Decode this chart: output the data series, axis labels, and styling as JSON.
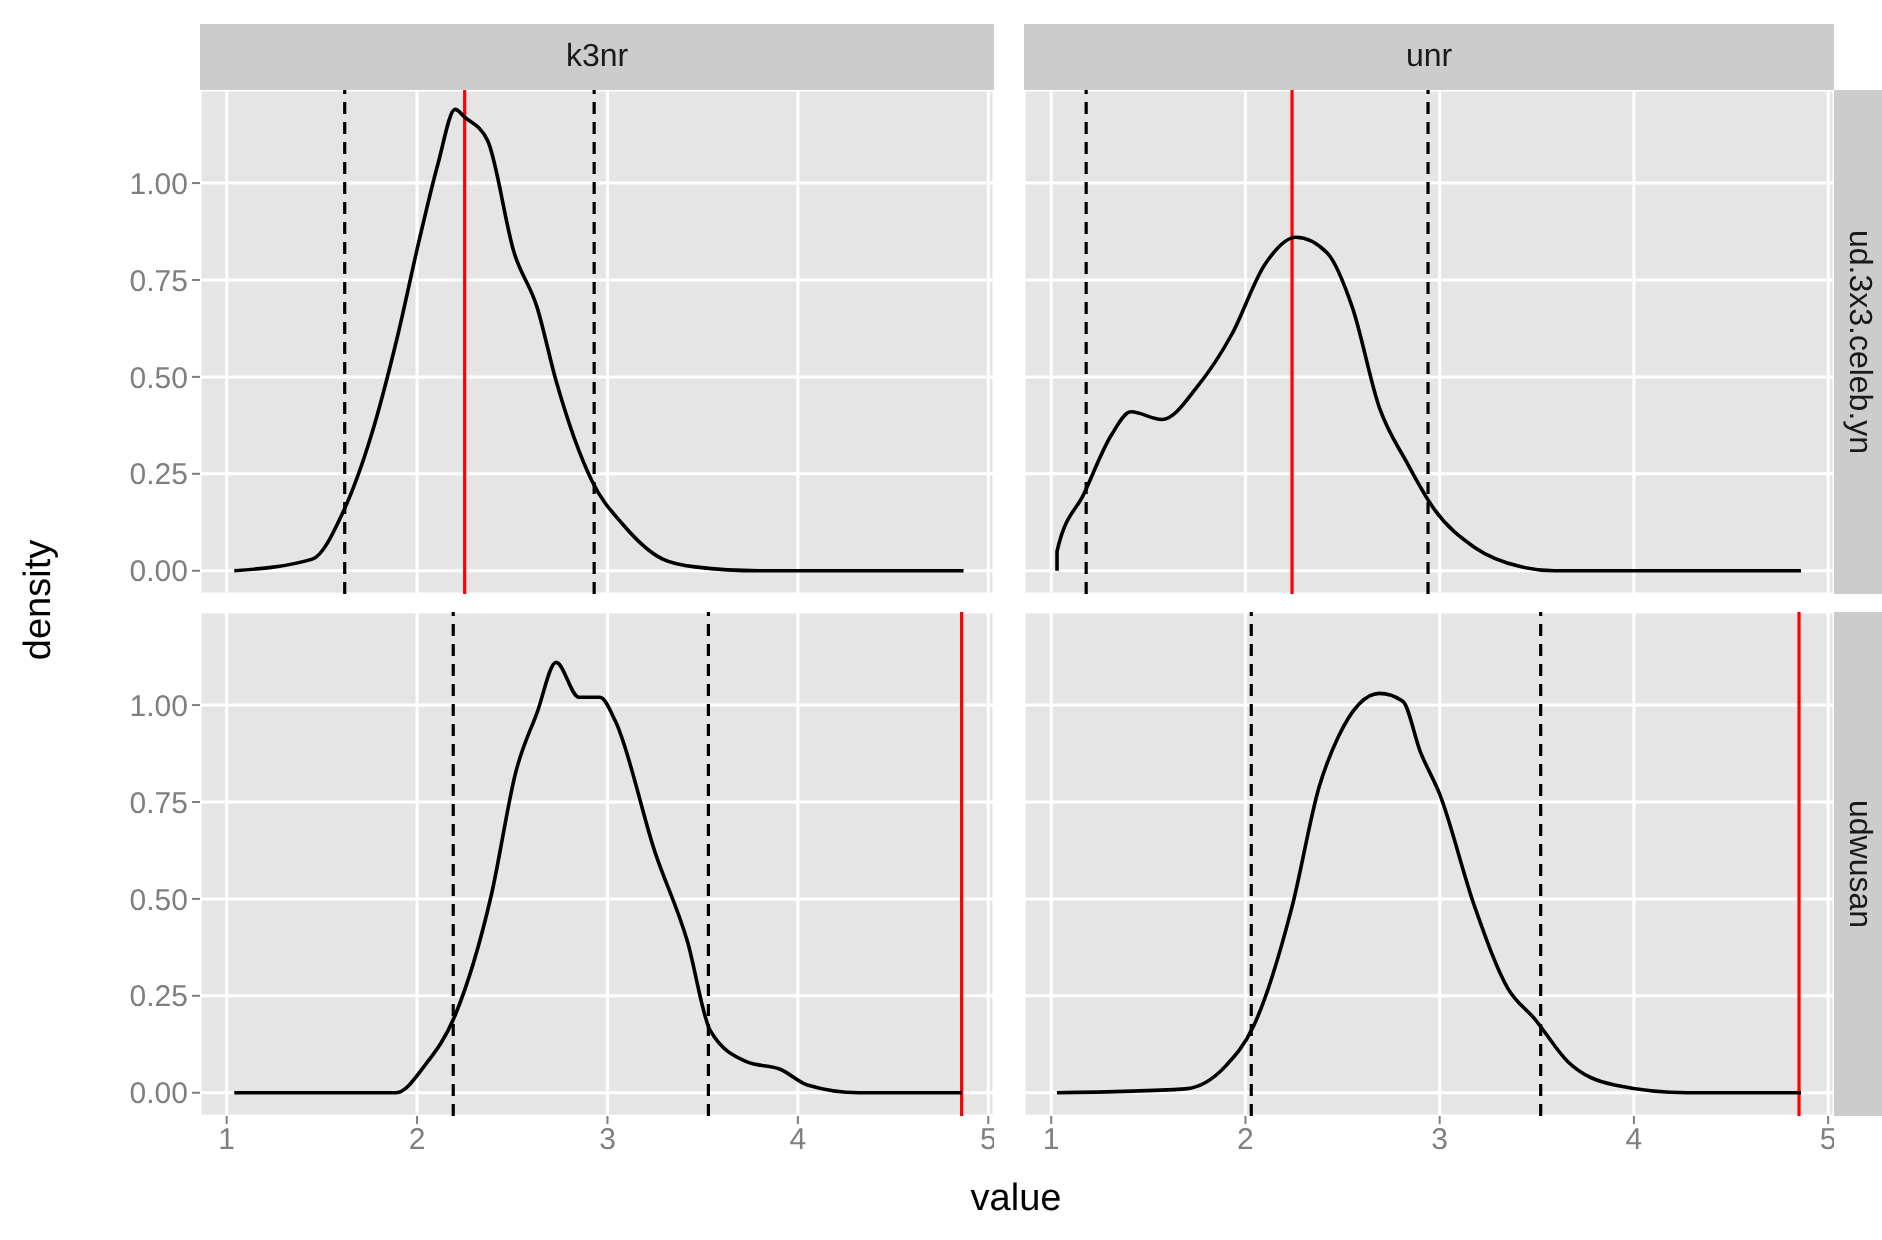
{
  "chart_data": [
    {
      "type": "line",
      "title": "k3nr",
      "ylabel": "density",
      "xlim": [
        0.86,
        5.03
      ],
      "ylim": [
        -0.06,
        1.24
      ],
      "xticks": [
        1,
        2,
        3,
        4,
        5
      ],
      "yticks": [
        {
          "value": 0,
          "label": "0.00"
        },
        {
          "value": 0.25,
          "label": "0.25"
        },
        {
          "value": 0.5,
          "label": "0.50"
        },
        {
          "value": 0.75,
          "label": "0.75"
        },
        {
          "value": 1,
          "label": "1.00"
        }
      ],
      "grid": true,
      "tick_labels": "y",
      "series": [
        {
          "color": "#000000",
          "x": [
            1.04,
            1.45,
            1.61,
            1.76,
            1.9,
            2.01,
            2.11,
            2.2,
            2.25,
            2.37,
            2.51,
            2.63,
            2.73,
            2.92,
            3.08,
            3.29,
            3.46,
            3.8,
            4.87
          ],
          "values": [
            0,
            0.03,
            0.15,
            0.35,
            0.61,
            0.85,
            1.05,
            1.19,
            1.17,
            1.11,
            0.82,
            0.68,
            0.49,
            0.23,
            0.12,
            0.03,
            0.01,
            0,
            0
          ]
        }
      ],
      "ref_lines": [
        {
          "axis": "x",
          "value": 1.62,
          "color": "#000000",
          "line_style": "dashed"
        },
        {
          "axis": "x",
          "value": 2.93,
          "color": "#000000",
          "line_style": "dashed"
        },
        {
          "axis": "x",
          "value": 2.25,
          "color": "#ff0000",
          "line_style": "solid"
        }
      ]
    },
    {
      "type": "line",
      "title": "unr",
      "y2label": "ud.3x3.celeb.yn",
      "xlim": [
        0.86,
        5.03
      ],
      "ylim": [
        -0.06,
        1.24
      ],
      "xticks": [
        1,
        2,
        3,
        4,
        5
      ],
      "yticks": [
        0,
        0.25,
        0.5,
        0.75,
        1
      ],
      "grid": true,
      "tick_labels": false,
      "series": [
        {
          "color": "#000000",
          "x": [
            1.03,
            1.03,
            1.17,
            1.31,
            1.41,
            1.57,
            1.76,
            1.93,
            2.1,
            2.26,
            2.42,
            2.55,
            2.69,
            2.83,
            2.97,
            3.18,
            3.42,
            3.59,
            4.86
          ],
          "values": [
            0,
            0.05,
            0.2,
            0.35,
            0.41,
            0.39,
            0.48,
            0.61,
            0.79,
            0.86,
            0.82,
            0.68,
            0.42,
            0.28,
            0.16,
            0.06,
            0.01,
            0,
            0
          ]
        }
      ],
      "ref_lines": [
        {
          "axis": "x",
          "value": 1.18,
          "color": "#000000",
          "line_style": "dashed"
        },
        {
          "axis": "x",
          "value": 2.94,
          "color": "#000000",
          "line_style": "dashed"
        },
        {
          "axis": "x",
          "value": 2.24,
          "color": "#ff0000",
          "line_style": "solid"
        }
      ]
    },
    {
      "type": "line",
      "xlabel": "value",
      "xlim": [
        0.86,
        5.03
      ],
      "ylim": [
        -0.06,
        1.24
      ],
      "xticks": [
        1,
        2,
        3,
        4,
        5
      ],
      "yticks": [
        {
          "value": 0,
          "label": "0.00"
        },
        {
          "value": 0.25,
          "label": "0.25"
        },
        {
          "value": 0.5,
          "label": "0.50"
        },
        {
          "value": 0.75,
          "label": "0.75"
        },
        {
          "value": 1,
          "label": "1.00"
        }
      ],
      "grid": true,
      "series": [
        {
          "color": "#000000",
          "x": [
            1.04,
            1.89,
            2.04,
            2.2,
            2.39,
            2.52,
            2.63,
            2.73,
            2.85,
            2.96,
            3.04,
            3.25,
            3.42,
            3.54,
            3.73,
            3.91,
            4.05,
            4.32,
            4.86
          ],
          "values": [
            0,
            0,
            0.07,
            0.2,
            0.51,
            0.83,
            0.98,
            1.11,
            1.02,
            1.02,
            0.96,
            0.62,
            0.39,
            0.16,
            0.08,
            0.06,
            0.02,
            0,
            0
          ]
        }
      ],
      "ref_lines": [
        {
          "axis": "x",
          "value": 2.19,
          "color": "#000000",
          "line_style": "dashed"
        },
        {
          "axis": "x",
          "value": 3.53,
          "color": "#000000",
          "line_style": "dashed"
        },
        {
          "axis": "x",
          "value": 4.86,
          "color": "#ff0000",
          "line_style": "solid"
        }
      ]
    },
    {
      "type": "line",
      "y2label": "udwusan",
      "xlim": [
        0.86,
        5.03
      ],
      "ylim": [
        -0.06,
        1.24
      ],
      "xticks": [
        1,
        2,
        3,
        4,
        5
      ],
      "yticks": [
        0,
        0.25,
        0.5,
        0.75,
        1
      ],
      "grid": true,
      "tick_labels": "x",
      "series": [
        {
          "color": "#000000",
          "x": [
            1.03,
            1.69,
            1.9,
            2.04,
            2.24,
            2.38,
            2.48,
            2.69,
            2.81,
            2.9,
            3.0,
            3.18,
            3.35,
            3.49,
            3.66,
            3.9,
            4.28,
            4.86
          ],
          "values": [
            0,
            0.01,
            0.07,
            0.17,
            0.48,
            0.79,
            0.92,
            1.03,
            1.01,
            0.88,
            0.77,
            0.48,
            0.27,
            0.19,
            0.08,
            0.02,
            0,
            0
          ]
        }
      ],
      "ref_lines": [
        {
          "axis": "x",
          "value": 2.03,
          "color": "#000000",
          "line_style": "dashed"
        },
        {
          "axis": "x",
          "value": 3.52,
          "color": "#000000",
          "line_style": "dashed"
        },
        {
          "axis": "x",
          "value": 4.85,
          "color": "#ff0000",
          "line_style": "solid"
        }
      ]
    }
  ]
}
